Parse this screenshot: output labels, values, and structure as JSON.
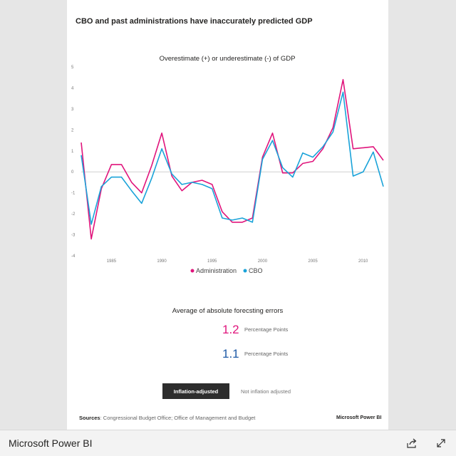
{
  "report": {
    "title": "CBO and past administrations have inaccurately predicted GDP",
    "average_title": "Average of absolute forecsting errors",
    "metrics": [
      {
        "value": "1.2",
        "unit": "Percentage Points",
        "color": "#e0157c"
      },
      {
        "value": "1.1",
        "unit": "Percentage Points",
        "color": "#1f5aa6"
      }
    ],
    "toggle": {
      "active_label": "Inflation-adjusted",
      "inactive_label": "Not inflation adjusted"
    },
    "sources_label": "Sources",
    "sources_text": ": Congressional Budget Office; Office of Management and Budget",
    "brand": "Microsoft Power BI"
  },
  "footer": {
    "brand": "Microsoft Power BI",
    "share_icon": "share-icon",
    "expand_icon": "expand-icon"
  },
  "chart_data": {
    "type": "line",
    "title": "Overestimate (+) or underestimate (-) of GDP",
    "xlabel": "",
    "ylabel": "",
    "x": [
      1982,
      1983,
      1984,
      1985,
      1986,
      1987,
      1988,
      1989,
      1990,
      1991,
      1992,
      1993,
      1994,
      1995,
      1996,
      1997,
      1998,
      1999,
      2000,
      2001,
      2002,
      2003,
      2004,
      2005,
      2006,
      2007,
      2008,
      2009,
      2010,
      2011,
      2012
    ],
    "x_ticks": [
      1985,
      1990,
      1995,
      2000,
      2005,
      2010
    ],
    "y_ticks": [
      -4,
      -3,
      -2,
      -1,
      0,
      1,
      2,
      3,
      4,
      5
    ],
    "xlim": [
      1982,
      2012
    ],
    "ylim": [
      -4,
      5
    ],
    "grid": false,
    "zero_line": true,
    "legend": "bottom-center",
    "series": [
      {
        "name": "Administration",
        "color": "#e0157c",
        "values": [
          1.4,
          -3.2,
          -0.8,
          0.35,
          0.35,
          -0.5,
          -1.0,
          0.3,
          1.85,
          -0.2,
          -0.9,
          -0.5,
          -0.4,
          -0.6,
          -1.9,
          -2.4,
          -2.4,
          -2.2,
          0.7,
          1.85,
          -0.05,
          -0.05,
          0.4,
          0.5,
          1.1,
          2.1,
          4.4,
          1.1,
          1.15,
          1.2,
          0.55
        ]
      },
      {
        "name": "CBO",
        "color": "#1aa3d9",
        "values": [
          0.8,
          -2.5,
          -0.7,
          -0.25,
          -0.25,
          -0.9,
          -1.5,
          -0.3,
          1.1,
          -0.1,
          -0.6,
          -0.5,
          -0.6,
          -0.8,
          -2.2,
          -2.3,
          -2.2,
          -2.4,
          0.6,
          1.5,
          0.2,
          -0.25,
          0.9,
          0.7,
          1.2,
          1.9,
          3.8,
          -0.2,
          0.0,
          0.95,
          -0.7
        ]
      }
    ]
  }
}
